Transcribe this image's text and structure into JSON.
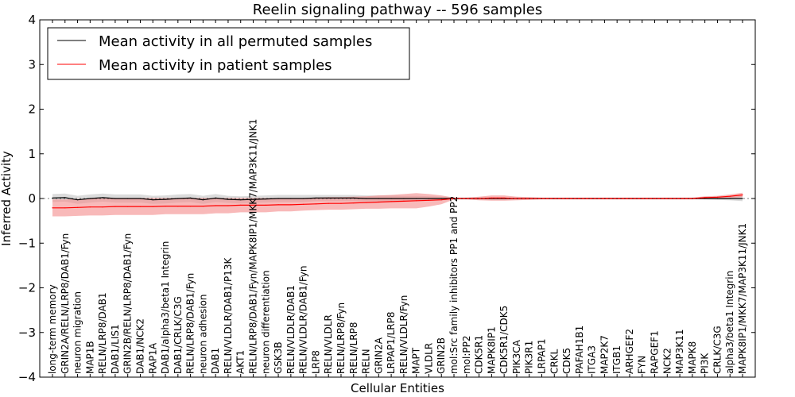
{
  "chart_data": {
    "type": "line",
    "title": "Reelin signaling pathway -- 596 samples",
    "xlabel": "Cellular Entities",
    "ylabel": "Inferred Activity",
    "ylim": [
      -4,
      4
    ],
    "yticks": [
      -4,
      -3,
      -2,
      -1,
      0,
      1,
      2,
      3,
      4
    ],
    "legend_position": "top-left",
    "categories": [
      "long-term memory",
      "GRIN2A/RELN/LRP8/DAB1/Fyn",
      "neuron migration",
      "MAP1B",
      "RELN/LRP8/DAB1",
      "DAB1/LIS1",
      "GRIN2B/RELN/LRP8/DAB1/Fyn",
      "DAB1/NCK2",
      "RAP1A",
      "DAB1/alpha3/beta1 Integrin",
      "DAB1/CRLK/C3G",
      "RELN/LRP8/DAB1/Fyn",
      "neuron adhesion",
      "DAB1",
      "RELN/VLDLR/DAB1/P13K",
      "AKT1",
      "RELN/LRP8/DAB1/Fyn/MAPK8IP1/MKK7/MAP3K11/JNK1",
      "neuron differentiation",
      "GSK3B",
      "RELN/VLDLR/DAB1",
      "RELN/VLDLR/DAB1/Fyn",
      "LRP8",
      "RELN/VLDLR",
      "RELN/LRP8/Fyn",
      "RELN/LRP8",
      "RELN",
      "GRIN2A",
      "LRPAP1/LRP8",
      "RELN/VLDLR/Fyn",
      "MAPT",
      "VLDLR",
      "GRIN2B",
      "mol:Src family inhibitors PP1 and PP2",
      "mol:PP2",
      "CDK5R1",
      "MAPK8IP1",
      "CDK5R1/CDK5",
      "PIK3CA",
      "PIK3R1",
      "LRPAP1",
      "CRKL",
      "CDK5",
      "PAFAH1B1",
      "ITGA3",
      "MAP2K7",
      "ITGB1",
      "ARHGEF2",
      "FYN",
      "RAPGEF1",
      "NCK2",
      "MAP3K11",
      "MAPK8",
      "PI3K",
      "CRLK/C3G",
      "alpha3/beta1 Integrin",
      "MAPK8IP1/MKK7/MAP3K11/JNK1"
    ],
    "series": [
      {
        "name": "Mean activity in all permuted samples",
        "color": "#000000",
        "band_color": "#c0c0c0",
        "values": [
          0.01,
          0.02,
          -0.03,
          0.0,
          0.02,
          0.0,
          0.0,
          0.0,
          -0.03,
          -0.02,
          0.0,
          0.01,
          -0.03,
          0.01,
          -0.02,
          -0.03,
          -0.02,
          -0.01,
          0.0,
          0.0,
          0.0,
          0.01,
          0.01,
          0.01,
          0.01,
          0.0,
          0.0,
          0.0,
          0.0,
          0.0,
          0.0,
          0.0,
          0.0,
          0.0,
          0.0,
          0.0,
          0.0,
          0.0,
          0.0,
          0.0,
          0.0,
          0.0,
          0.0,
          0.0,
          0.0,
          0.0,
          0.0,
          0.0,
          0.0,
          0.0,
          0.0,
          0.0,
          0.0,
          0.0,
          0.0,
          0.0
        ],
        "spread": [
          0.09,
          0.09,
          0.09,
          0.09,
          0.09,
          0.09,
          0.09,
          0.09,
          0.09,
          0.09,
          0.09,
          0.09,
          0.09,
          0.09,
          0.08,
          0.08,
          0.08,
          0.08,
          0.08,
          0.08,
          0.08,
          0.07,
          0.07,
          0.07,
          0.07,
          0.07,
          0.07,
          0.07,
          0.06,
          0.06,
          0.05,
          0.04,
          0.02,
          0.02,
          0.02,
          0.02,
          0.02,
          0.01,
          0.01,
          0.01,
          0.01,
          0.01,
          0.01,
          0.01,
          0.01,
          0.01,
          0.01,
          0.01,
          0.01,
          0.01,
          0.01,
          0.01,
          0.02,
          0.03,
          0.04,
          0.06
        ]
      },
      {
        "name": "Mean activity in patient samples",
        "color": "#ff0000",
        "band_color": "#f48a8a",
        "values": [
          -0.21,
          -0.21,
          -0.2,
          -0.19,
          -0.19,
          -0.18,
          -0.18,
          -0.18,
          -0.18,
          -0.17,
          -0.17,
          -0.17,
          -0.17,
          -0.16,
          -0.16,
          -0.15,
          -0.15,
          -0.15,
          -0.14,
          -0.14,
          -0.13,
          -0.12,
          -0.11,
          -0.11,
          -0.1,
          -0.09,
          -0.08,
          -0.07,
          -0.06,
          -0.05,
          -0.04,
          -0.03,
          0.0,
          0.0,
          0.0,
          0.01,
          0.01,
          0.0,
          0.0,
          0.0,
          0.0,
          0.0,
          0.0,
          0.0,
          0.0,
          0.0,
          0.0,
          0.0,
          0.0,
          0.0,
          0.0,
          0.0,
          0.02,
          0.03,
          0.05,
          0.08
        ],
        "spread": [
          0.19,
          0.19,
          0.19,
          0.19,
          0.19,
          0.19,
          0.19,
          0.19,
          0.19,
          0.18,
          0.18,
          0.18,
          0.18,
          0.17,
          0.17,
          0.16,
          0.16,
          0.16,
          0.15,
          0.15,
          0.14,
          0.14,
          0.14,
          0.14,
          0.14,
          0.14,
          0.15,
          0.15,
          0.16,
          0.17,
          0.14,
          0.1,
          0.02,
          0.02,
          0.04,
          0.06,
          0.06,
          0.04,
          0.03,
          0.02,
          0.02,
          0.02,
          0.02,
          0.02,
          0.02,
          0.02,
          0.02,
          0.02,
          0.02,
          0.02,
          0.02,
          0.02,
          0.03,
          0.03,
          0.04,
          0.05
        ]
      }
    ]
  }
}
